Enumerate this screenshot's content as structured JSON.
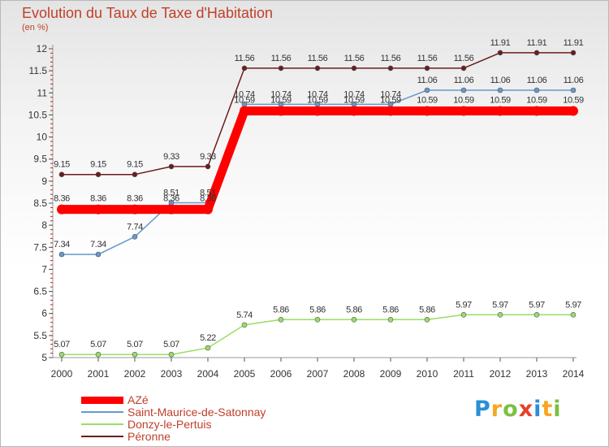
{
  "header": {
    "title": "Evolution du Taux de Taxe d'Habitation",
    "unit": "(en %)"
  },
  "chart_data": {
    "type": "line",
    "title": "Evolution du Taux de Taxe d'Habitation",
    "subtitle": "(en %)",
    "xlabel": "",
    "ylabel": "",
    "x": [
      "2000",
      "2001",
      "2002",
      "2003",
      "2004",
      "2005",
      "2006",
      "2007",
      "2008",
      "2009",
      "2010",
      "2011",
      "2012",
      "2013",
      "2014"
    ],
    "ylim": [
      5,
      12
    ],
    "yticks": [
      "5",
      "5.5",
      "6",
      "6.5",
      "7",
      "7.5",
      "8",
      "8.5",
      "9",
      "9.5",
      "10",
      "10.5",
      "11",
      "11.5",
      "12"
    ],
    "grid": false,
    "legend": "bottom-left",
    "series": [
      {
        "name": "AZé",
        "color": "#ff0000",
        "values": [
          8.36,
          8.36,
          8.36,
          8.36,
          8.36,
          10.59,
          10.59,
          10.59,
          10.59,
          10.59,
          10.59,
          10.59,
          10.59,
          10.59,
          10.59
        ],
        "labels": [
          "8.36",
          "8.36",
          "8.36",
          "8.36",
          "8.36",
          "10.59",
          "10.59",
          "10.59",
          "10.59",
          "10.59",
          "10.59",
          "10.59",
          "10.59",
          "10.59",
          "10.59"
        ]
      },
      {
        "name": "Saint-Maurice-de-Satonnay",
        "color": "#6699cc",
        "values": [
          7.34,
          7.34,
          7.74,
          8.51,
          8.51,
          10.74,
          10.74,
          10.74,
          10.74,
          10.74,
          11.06,
          11.06,
          11.06,
          11.06,
          11.06
        ],
        "labels": [
          "7.34",
          "7.34",
          "7.74",
          "8.51",
          "8.51",
          "10.74",
          "10.74",
          "10.74",
          "10.74",
          "10.74",
          "11.06",
          "11.06",
          "11.06",
          "11.06",
          "11.06"
        ]
      },
      {
        "name": "Donzy-le-Pertuis",
        "color": "#99dd66",
        "values": [
          5.07,
          5.07,
          5.07,
          5.07,
          5.22,
          5.74,
          5.86,
          5.86,
          5.86,
          5.86,
          5.86,
          5.97,
          5.97,
          5.97,
          5.97
        ],
        "labels": [
          "5.07",
          "5.07",
          "5.07",
          "5.07",
          "5.22",
          "5.74",
          "5.86",
          "5.86",
          "5.86",
          "5.86",
          "5.86",
          "5.97",
          "5.97",
          "5.97",
          "5.97"
        ]
      },
      {
        "name": "Péronne",
        "color": "#6b1c1c",
        "values": [
          9.15,
          9.15,
          9.15,
          9.33,
          9.33,
          11.56,
          11.56,
          11.56,
          11.56,
          11.56,
          11.56,
          11.56,
          11.91,
          11.91,
          11.91
        ],
        "labels": [
          "9.15",
          "9.15",
          "9.15",
          "9.33",
          "9.33",
          "11.56",
          "11.56",
          "11.56",
          "11.56",
          "11.56",
          "11.56",
          "11.56",
          "11.91",
          "11.91",
          "11.91"
        ]
      }
    ]
  },
  "legend": {
    "items": [
      {
        "label": "AZé",
        "color": "#ff0000"
      },
      {
        "label": "Saint-Maurice-de-Satonnay",
        "color": "#6699cc"
      },
      {
        "label": "Donzy-le-Pertuis",
        "color": "#99dd66"
      },
      {
        "label": "Péronne",
        "color": "#6b1c1c"
      }
    ]
  },
  "logo": {
    "letters": [
      "P",
      "r",
      "o",
      "x",
      "i",
      "t",
      "i"
    ],
    "colors": [
      "#2a8fd6",
      "#f5a623",
      "#7bc043",
      "#e8402a",
      "#2a8fd6",
      "#f5a623",
      "#7bc043"
    ]
  }
}
